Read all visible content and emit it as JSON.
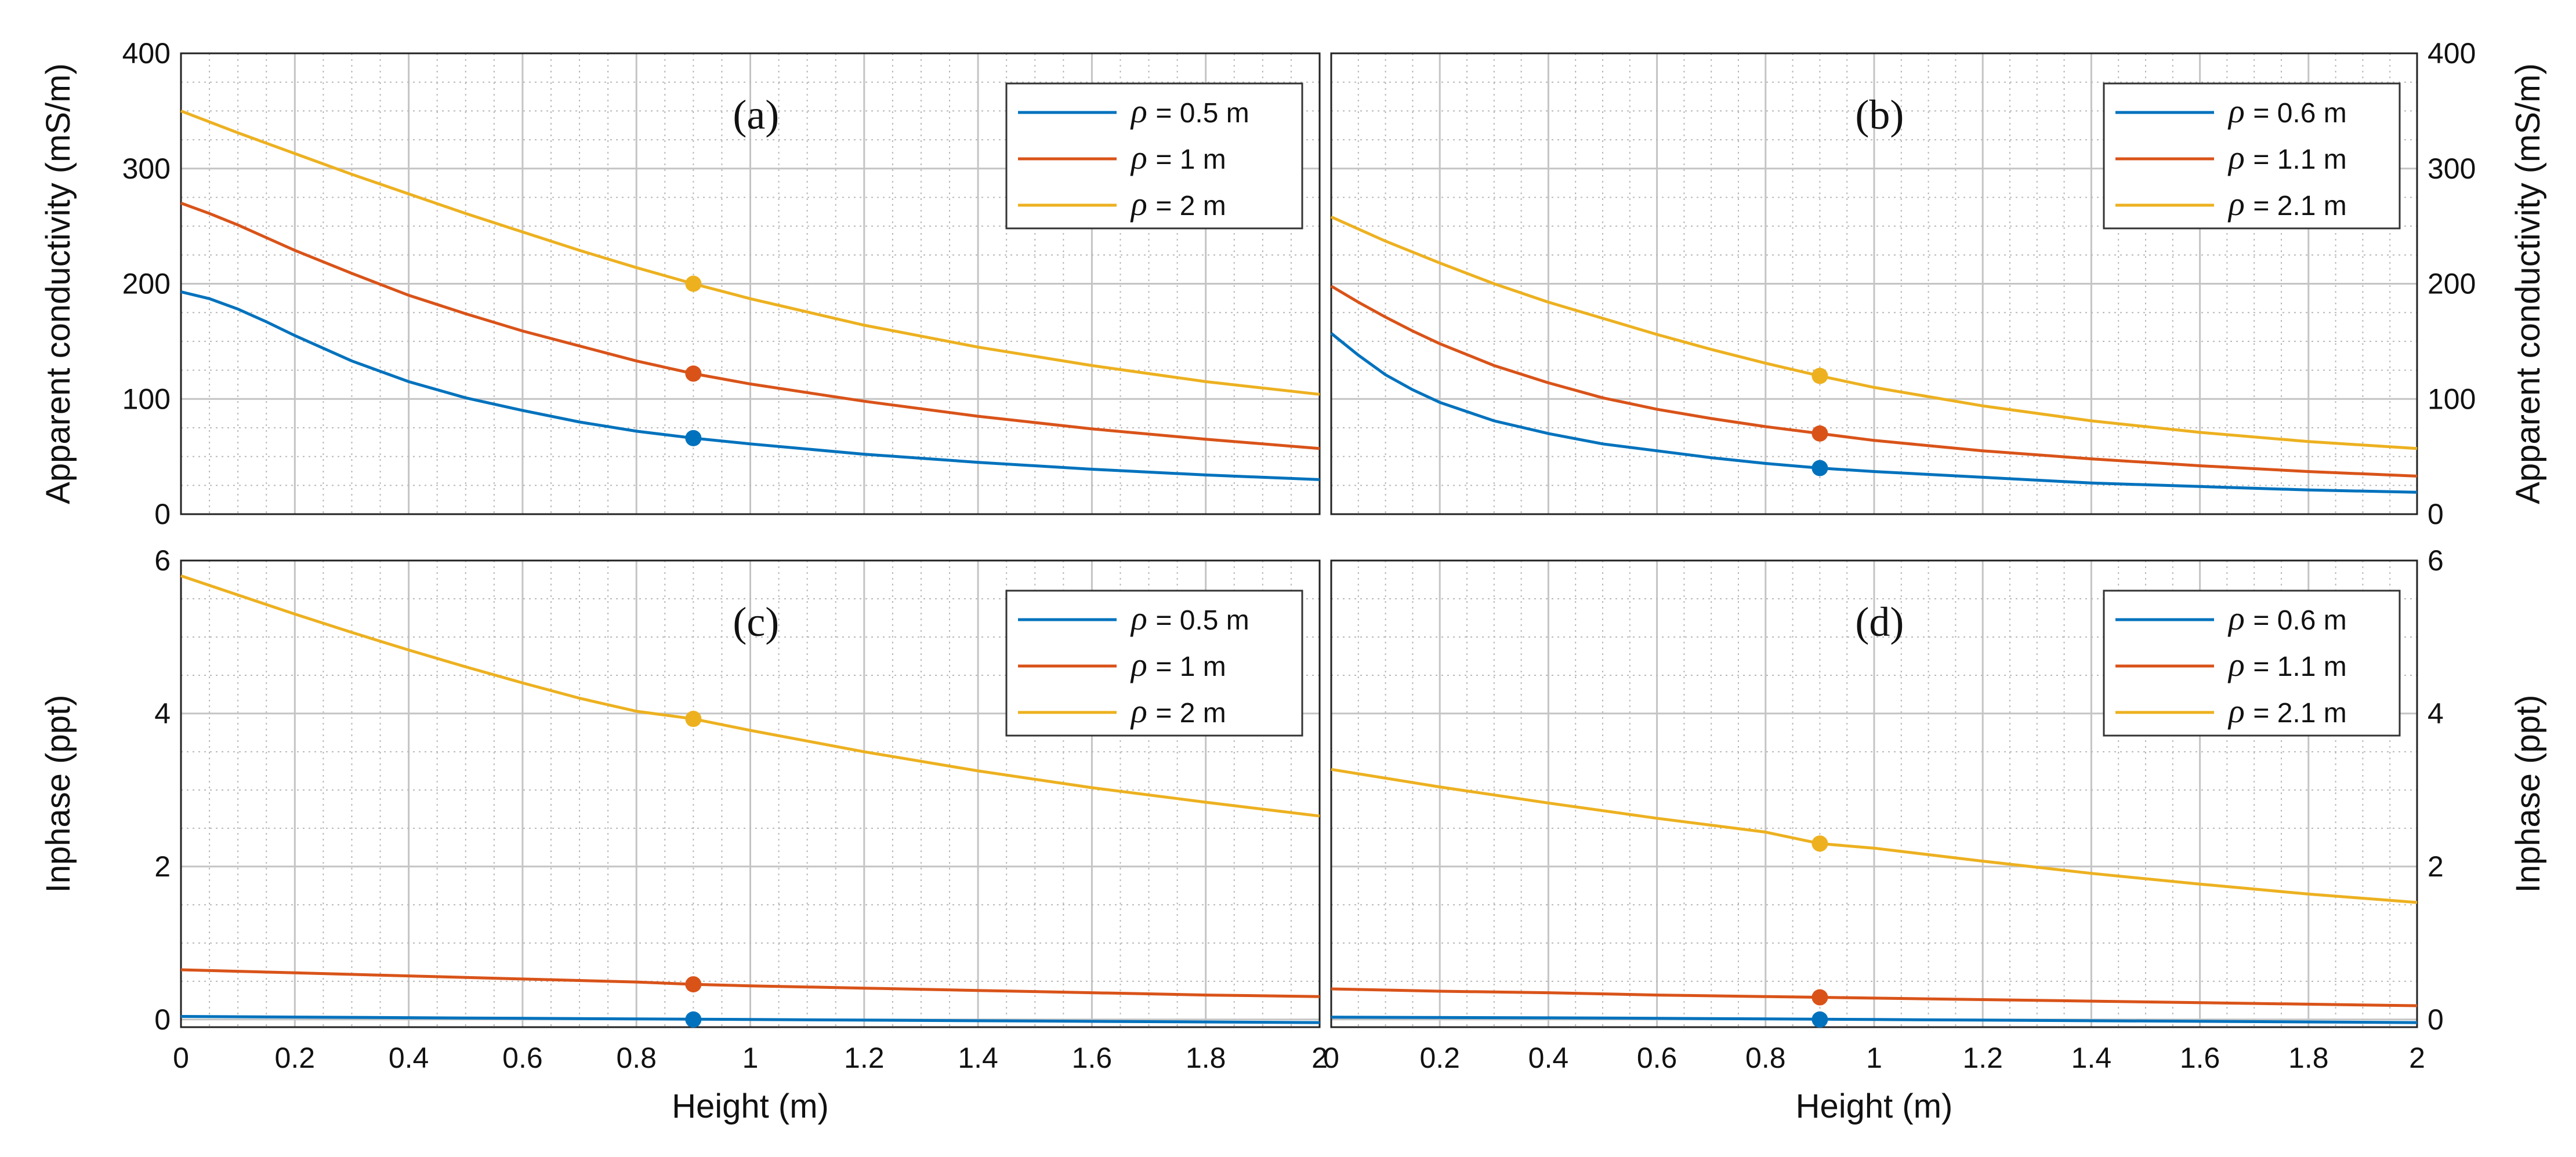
{
  "chart_data": [
    {
      "type": "line",
      "panel_label": "(a)",
      "xlabel": "",
      "ylabel": "Apparent conductivity (mS/m)",
      "xlim": [
        0,
        2
      ],
      "ylim": [
        0,
        400
      ],
      "xticks": [
        "",
        "",
        "",
        "",
        "",
        "",
        "",
        "",
        "",
        "",
        ""
      ],
      "yticks": [
        "0",
        "100",
        "200",
        "300",
        "400"
      ],
      "grid": true,
      "legend": "top-right",
      "colors": [
        "#0072BD",
        "#D95319",
        "#EDB120"
      ],
      "series": [
        {
          "name": "= 0.5 m",
          "x": [
            0,
            0.05,
            0.1,
            0.15,
            0.2,
            0.3,
            0.4,
            0.5,
            0.6,
            0.7,
            0.8,
            0.9,
            1.0,
            1.2,
            1.4,
            1.6,
            1.8,
            2.0
          ],
          "y": [
            193,
            187,
            178,
            167,
            155,
            133,
            115,
            101,
            90,
            80,
            72,
            66,
            61,
            52,
            45,
            39,
            34,
            30
          ],
          "marker": {
            "x": 0.9,
            "y": 66
          }
        },
        {
          "name": "= 1 m",
          "x": [
            0,
            0.05,
            0.1,
            0.15,
            0.2,
            0.3,
            0.4,
            0.5,
            0.6,
            0.7,
            0.8,
            0.9,
            1.0,
            1.2,
            1.4,
            1.6,
            1.8,
            2.0
          ],
          "y": [
            270,
            261,
            251,
            240,
            229,
            209,
            190,
            174,
            159,
            146,
            133,
            122,
            113,
            98,
            85,
            74,
            65,
            57
          ],
          "marker": {
            "x": 0.9,
            "y": 122
          }
        },
        {
          "name": "= 2 m",
          "x": [
            0,
            0.1,
            0.2,
            0.3,
            0.4,
            0.5,
            0.6,
            0.7,
            0.8,
            0.9,
            1.0,
            1.2,
            1.4,
            1.6,
            1.8,
            2.0
          ],
          "y": [
            350,
            331,
            313,
            295,
            278,
            261,
            245,
            229,
            214,
            200,
            187,
            164,
            145,
            129,
            115,
            104
          ],
          "marker": {
            "x": 0.9,
            "y": 200
          }
        }
      ],
      "series_label_prefix": "ρ"
    },
    {
      "type": "line",
      "panel_label": "(b)",
      "xlabel": "",
      "ylabel": "Apparent conductivity (mS/m)",
      "xlim": [
        0,
        2
      ],
      "ylim": [
        0,
        400
      ],
      "xticks": [
        "",
        "",
        "",
        "",
        "",
        "",
        "",
        "",
        "",
        "",
        ""
      ],
      "yticks": [
        "0",
        "100",
        "200",
        "300",
        "400"
      ],
      "grid": true,
      "legend": "top-right",
      "colors": [
        "#0072BD",
        "#D95319",
        "#EDB120"
      ],
      "series": [
        {
          "name": "= 0.6 m",
          "x": [
            0,
            0.05,
            0.1,
            0.15,
            0.2,
            0.3,
            0.4,
            0.5,
            0.6,
            0.7,
            0.8,
            0.9,
            1.0,
            1.2,
            1.4,
            1.6,
            1.8,
            2.0
          ],
          "y": [
            157,
            138,
            121,
            108,
            97,
            81,
            70,
            61,
            55,
            49,
            44,
            40,
            37,
            32,
            27,
            24,
            21,
            19
          ],
          "marker": {
            "x": 0.9,
            "y": 40
          }
        },
        {
          "name": "= 1.1 m",
          "x": [
            0,
            0.05,
            0.1,
            0.15,
            0.2,
            0.3,
            0.4,
            0.5,
            0.6,
            0.7,
            0.8,
            0.9,
            1.0,
            1.2,
            1.4,
            1.6,
            1.8,
            2.0
          ],
          "y": [
            198,
            184,
            171,
            159,
            148,
            129,
            114,
            101,
            91,
            83,
            76,
            70,
            64,
            55,
            48,
            42,
            37,
            33
          ],
          "marker": {
            "x": 0.9,
            "y": 70
          }
        },
        {
          "name": "= 2.1 m",
          "x": [
            0,
            0.1,
            0.2,
            0.3,
            0.4,
            0.5,
            0.6,
            0.7,
            0.8,
            0.9,
            1.0,
            1.2,
            1.4,
            1.6,
            1.8,
            2.0
          ],
          "y": [
            258,
            237,
            218,
            200,
            184,
            170,
            156,
            143,
            131,
            120,
            110,
            94,
            81,
            71,
            63,
            57
          ],
          "marker": {
            "x": 0.9,
            "y": 120
          }
        }
      ],
      "series_label_prefix": "ρ"
    },
    {
      "type": "line",
      "panel_label": "(c)",
      "xlabel": "Height (m)",
      "ylabel": "Inphase (ppt)",
      "xlim": [
        0,
        2
      ],
      "ylim": [
        -0.1,
        6
      ],
      "xticks": [
        "0",
        "0.2",
        "0.4",
        "0.6",
        "0.8",
        "1",
        "1.2",
        "1.4",
        "1.6",
        "1.8",
        "2"
      ],
      "yticks": [
        "0",
        "2",
        "4",
        "6"
      ],
      "grid": true,
      "legend": "top-right",
      "colors": [
        "#0072BD",
        "#D95319",
        "#EDB120"
      ],
      "series": [
        {
          "name": "= 0.5 m",
          "x": [
            0,
            0.5,
            1.0,
            1.5,
            2.0
          ],
          "y": [
            0.04,
            0.02,
            0.0,
            -0.02,
            -0.04
          ],
          "marker": {
            "x": 0.9,
            "y": 0.0
          }
        },
        {
          "name": "= 1 m",
          "x": [
            0,
            0.2,
            0.4,
            0.6,
            0.8,
            0.9,
            1.0,
            1.2,
            1.4,
            1.6,
            1.8,
            2.0
          ],
          "y": [
            0.65,
            0.61,
            0.57,
            0.53,
            0.49,
            0.46,
            0.44,
            0.41,
            0.38,
            0.35,
            0.32,
            0.3
          ],
          "marker": {
            "x": 0.9,
            "y": 0.46
          }
        },
        {
          "name": "= 2 m",
          "x": [
            0,
            0.1,
            0.2,
            0.3,
            0.4,
            0.5,
            0.6,
            0.7,
            0.8,
            0.9,
            1.0,
            1.2,
            1.4,
            1.6,
            1.8,
            2.0
          ],
          "y": [
            5.8,
            5.55,
            5.3,
            5.06,
            4.83,
            4.61,
            4.4,
            4.2,
            4.03,
            3.93,
            3.78,
            3.5,
            3.25,
            3.03,
            2.84,
            2.66
          ],
          "marker": {
            "x": 0.9,
            "y": 3.93
          }
        }
      ],
      "series_label_prefix": "ρ"
    },
    {
      "type": "line",
      "panel_label": "(d)",
      "xlabel": "Height (m)",
      "ylabel": "Inphase (ppt)",
      "xlim": [
        0,
        2
      ],
      "ylim": [
        -0.1,
        6
      ],
      "xticks": [
        "0",
        "0.2",
        "0.4",
        "0.6",
        "0.8",
        "1",
        "1.2",
        "1.4",
        "1.6",
        "1.8",
        "2"
      ],
      "yticks": [
        "0",
        "2",
        "4",
        "6"
      ],
      "grid": true,
      "legend": "top-right",
      "colors": [
        "#0072BD",
        "#D95319",
        "#EDB120"
      ],
      "series": [
        {
          "name": "= 0.6 m",
          "x": [
            0,
            0.5,
            1.0,
            1.5,
            2.0
          ],
          "y": [
            0.03,
            0.02,
            0.0,
            -0.02,
            -0.04
          ],
          "marker": {
            "x": 0.9,
            "y": 0.0
          }
        },
        {
          "name": "= 1.1 m",
          "x": [
            0,
            0.2,
            0.4,
            0.6,
            0.8,
            0.9,
            1.0,
            1.2,
            1.4,
            1.6,
            1.8,
            2.0
          ],
          "y": [
            0.4,
            0.37,
            0.35,
            0.32,
            0.3,
            0.29,
            0.28,
            0.26,
            0.24,
            0.22,
            0.2,
            0.18
          ],
          "marker": {
            "x": 0.9,
            "y": 0.29
          }
        },
        {
          "name": "= 2.1 m",
          "x": [
            0,
            0.2,
            0.4,
            0.6,
            0.8,
            0.9,
            1.0,
            1.2,
            1.4,
            1.6,
            1.8,
            2.0
          ],
          "y": [
            3.27,
            3.04,
            2.83,
            2.63,
            2.45,
            2.3,
            2.24,
            2.07,
            1.91,
            1.77,
            1.64,
            1.53
          ],
          "marker": {
            "x": 0.9,
            "y": 2.3
          }
        }
      ],
      "series_label_prefix": "ρ"
    }
  ]
}
